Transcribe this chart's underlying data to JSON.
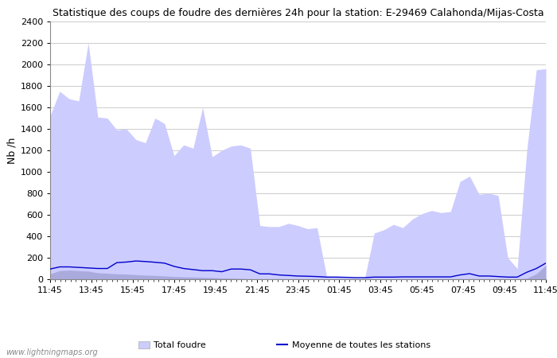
{
  "title": "Statistique des coups de foudre des dernières 24h pour la station: E-29469 Calahonda/Mijas-Costa",
  "ylabel": "Nb /h",
  "ylim": [
    0,
    2400
  ],
  "yticks": [
    0,
    200,
    400,
    600,
    800,
    1000,
    1200,
    1400,
    1600,
    1800,
    2000,
    2200,
    2400
  ],
  "xtick_labels": [
    "11:45",
    "13:45",
    "15:45",
    "17:45",
    "19:45",
    "21:45",
    "23:45",
    "01:45",
    "03:45",
    "05:45",
    "07:45",
    "09:45",
    "11:45"
  ],
  "bg_color": "#ffffff",
  "plot_bg_color": "#ffffff",
  "grid_color": "#cccccc",
  "total_foudre_color": "#ccccff",
  "station_foudre_color": "#aaaadd",
  "moyenne_color": "#0000cc",
  "watermark": "www.lightningmaps.org",
  "total_foudre_values": [
    1520,
    1750,
    1680,
    1660,
    2200,
    1510,
    1500,
    1390,
    1400,
    1300,
    1270,
    1500,
    1450,
    1150,
    1250,
    1220,
    1600,
    1140,
    1200,
    1240,
    1250,
    1220,
    500,
    490,
    490,
    520,
    500,
    470,
    480,
    30,
    20,
    15,
    10,
    10,
    430,
    460,
    510,
    480,
    560,
    610,
    640,
    620,
    630,
    910,
    960,
    790,
    800,
    780,
    200,
    100,
    1200,
    1950,
    1960
  ],
  "station_foudre_values": [
    50,
    80,
    85,
    80,
    75,
    60,
    55,
    50,
    48,
    42,
    38,
    35,
    30,
    25,
    22,
    20,
    18,
    15,
    12,
    10,
    8,
    5,
    5,
    5,
    5,
    5,
    5,
    5,
    5,
    5,
    5,
    5,
    5,
    5,
    5,
    5,
    5,
    5,
    5,
    5,
    5,
    5,
    5,
    5,
    5,
    5,
    5,
    5,
    5,
    5,
    10,
    50,
    130
  ],
  "moyenne_values": [
    95,
    115,
    115,
    110,
    105,
    100,
    100,
    155,
    160,
    170,
    165,
    158,
    150,
    120,
    100,
    90,
    80,
    80,
    70,
    95,
    95,
    88,
    50,
    50,
    40,
    35,
    30,
    28,
    25,
    20,
    20,
    18,
    15,
    15,
    20,
    20,
    20,
    22,
    22,
    22,
    22,
    22,
    22,
    40,
    52,
    30,
    30,
    25,
    20,
    20,
    65,
    100,
    150
  ]
}
